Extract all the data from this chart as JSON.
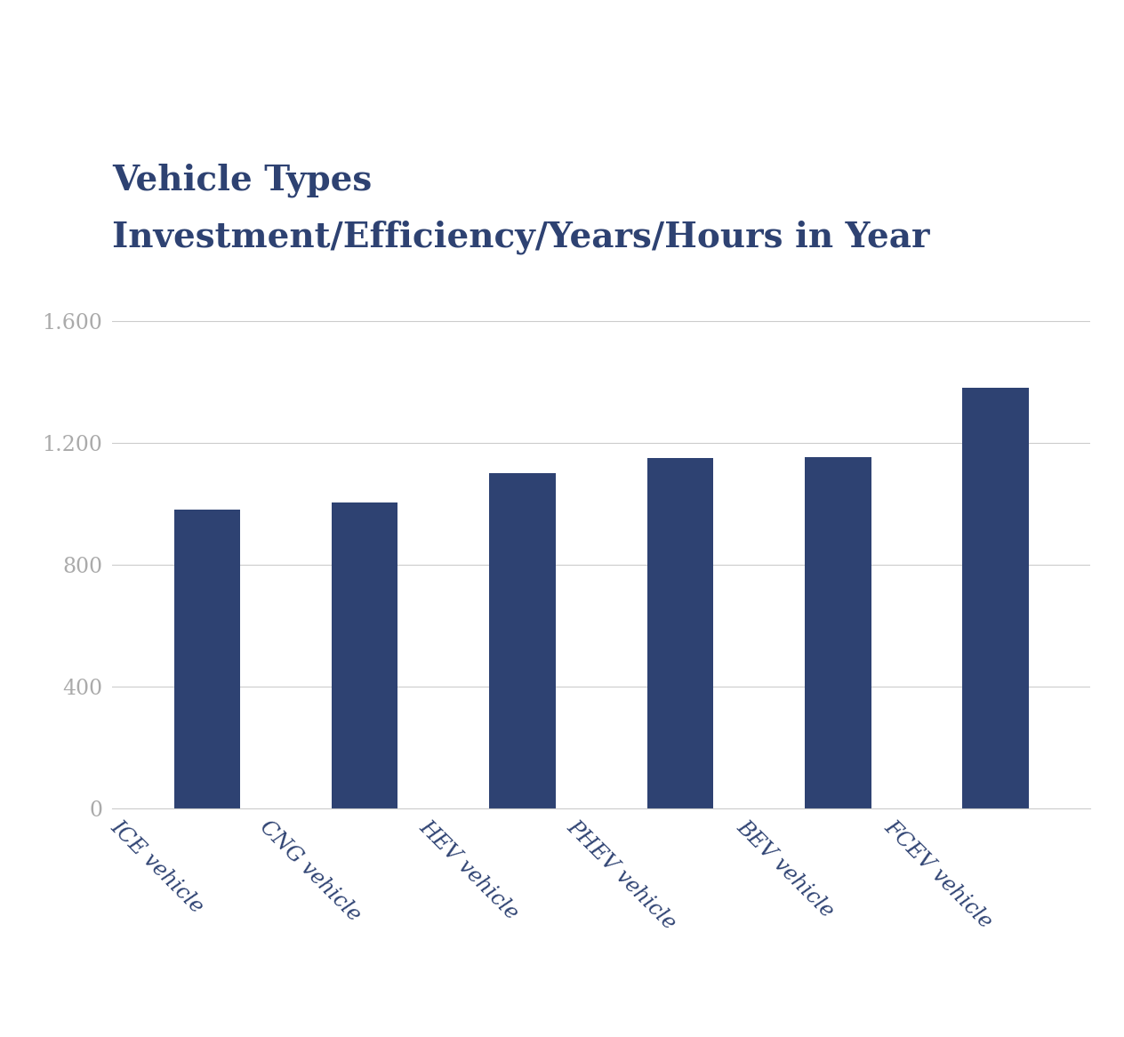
{
  "title_line1": "Vehicle Types",
  "title_line2": "Investment/Efficiency/Years/Hours in Year",
  "categories": [
    "ICE vehicle",
    "CNG vehicle",
    "HEV vehicle",
    "PHEV vehicle",
    "BEV vehicle",
    "FCEV vehicle"
  ],
  "values": [
    980,
    1005,
    1100,
    1150,
    1152,
    1380
  ],
  "bar_color": "#2E4272",
  "yticks": [
    0,
    400,
    800,
    1200,
    1600
  ],
  "ytick_labels": [
    "0",
    "400",
    "800",
    "1.200",
    "1.600"
  ],
  "ylim": [
    0,
    1700
  ],
  "background_color": "#ffffff",
  "title_color": "#2E4272",
  "title_fontsize1": 28,
  "title_fontsize2": 28,
  "ytick_color": "#aaaaaa",
  "xtick_color": "#2E4272",
  "grid_color": "#cccccc",
  "bar_width": 0.42
}
